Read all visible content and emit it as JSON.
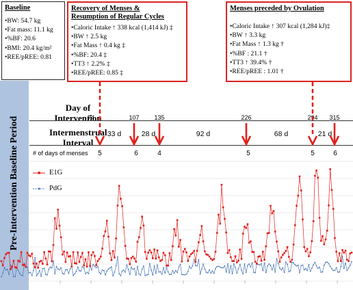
{
  "baseline_box": {
    "title": "Baseline",
    "lines": [
      "•BW:  54.7 kg",
      "•Fat mass:  11.1 kg",
      "•%BF: 20.6",
      "•BMI:  20.4 kg/m²",
      "•REE/pREE:  0.81"
    ]
  },
  "recovery_box": {
    "title_line1": "Recovery of Menses &",
    "title_line2": "Resumption of Regular Cycles",
    "lines": [
      "•Caloric Intake ↑ 338 kcal (1,414 kJ) ‡",
      "•BW ↑ 2.5 kg",
      "•Fat Mass ↑ 0.4 kg  ‡",
      "•%BF: 20.4 ‡",
      "•TT3 ↑ 2.2% ‡",
      "•REE/pREE: 0.85 ‡"
    ]
  },
  "ovulation_box": {
    "title": "Menses preceded by Ovulation",
    "lines": [
      "•Caloric Intake ↑ 307 kcal (1,284 kJ)‡",
      "•BW ↑ 3.3 kg",
      "•Fat Mass ↑ 1.3 kg †",
      "•%BF : 21.1 †",
      "•TT3 ↑ 39.4% †",
      "•REE/pREE : 1.01 †"
    ]
  },
  "side_label": "Pre-Intervention Baseline Period",
  "day_label": "Day of Intervention",
  "interval_label": "Intermenstrual Interval",
  "menses_label": "# of days of menses",
  "days": [
    "74",
    "107",
    "135",
    "226",
    "294",
    "315"
  ],
  "intervals": [
    "33 d",
    "28 d",
    "92 d",
    "68 d",
    "21 d"
  ],
  "menses_days": [
    "5",
    "6",
    "4",
    "5",
    "5",
    "6"
  ],
  "colors": {
    "e1g": "#e0201c",
    "pdg": "#4a78b8",
    "arrow": "#e0201c",
    "side": "#aec3df"
  },
  "chart_data": {
    "type": "line",
    "series": [
      {
        "name": "E1G",
        "color": "#e0201c"
      },
      {
        "name": "PdG",
        "color": "#4a78b8"
      }
    ],
    "menses_onset_days": [
      74,
      107,
      135,
      226,
      294,
      315
    ],
    "intermenstrual_intervals_days": [
      33,
      28,
      92,
      68,
      21
    ],
    "menses_duration_days": [
      5,
      6,
      4,
      5,
      5,
      6
    ],
    "grid": true,
    "legend": "top-left"
  }
}
